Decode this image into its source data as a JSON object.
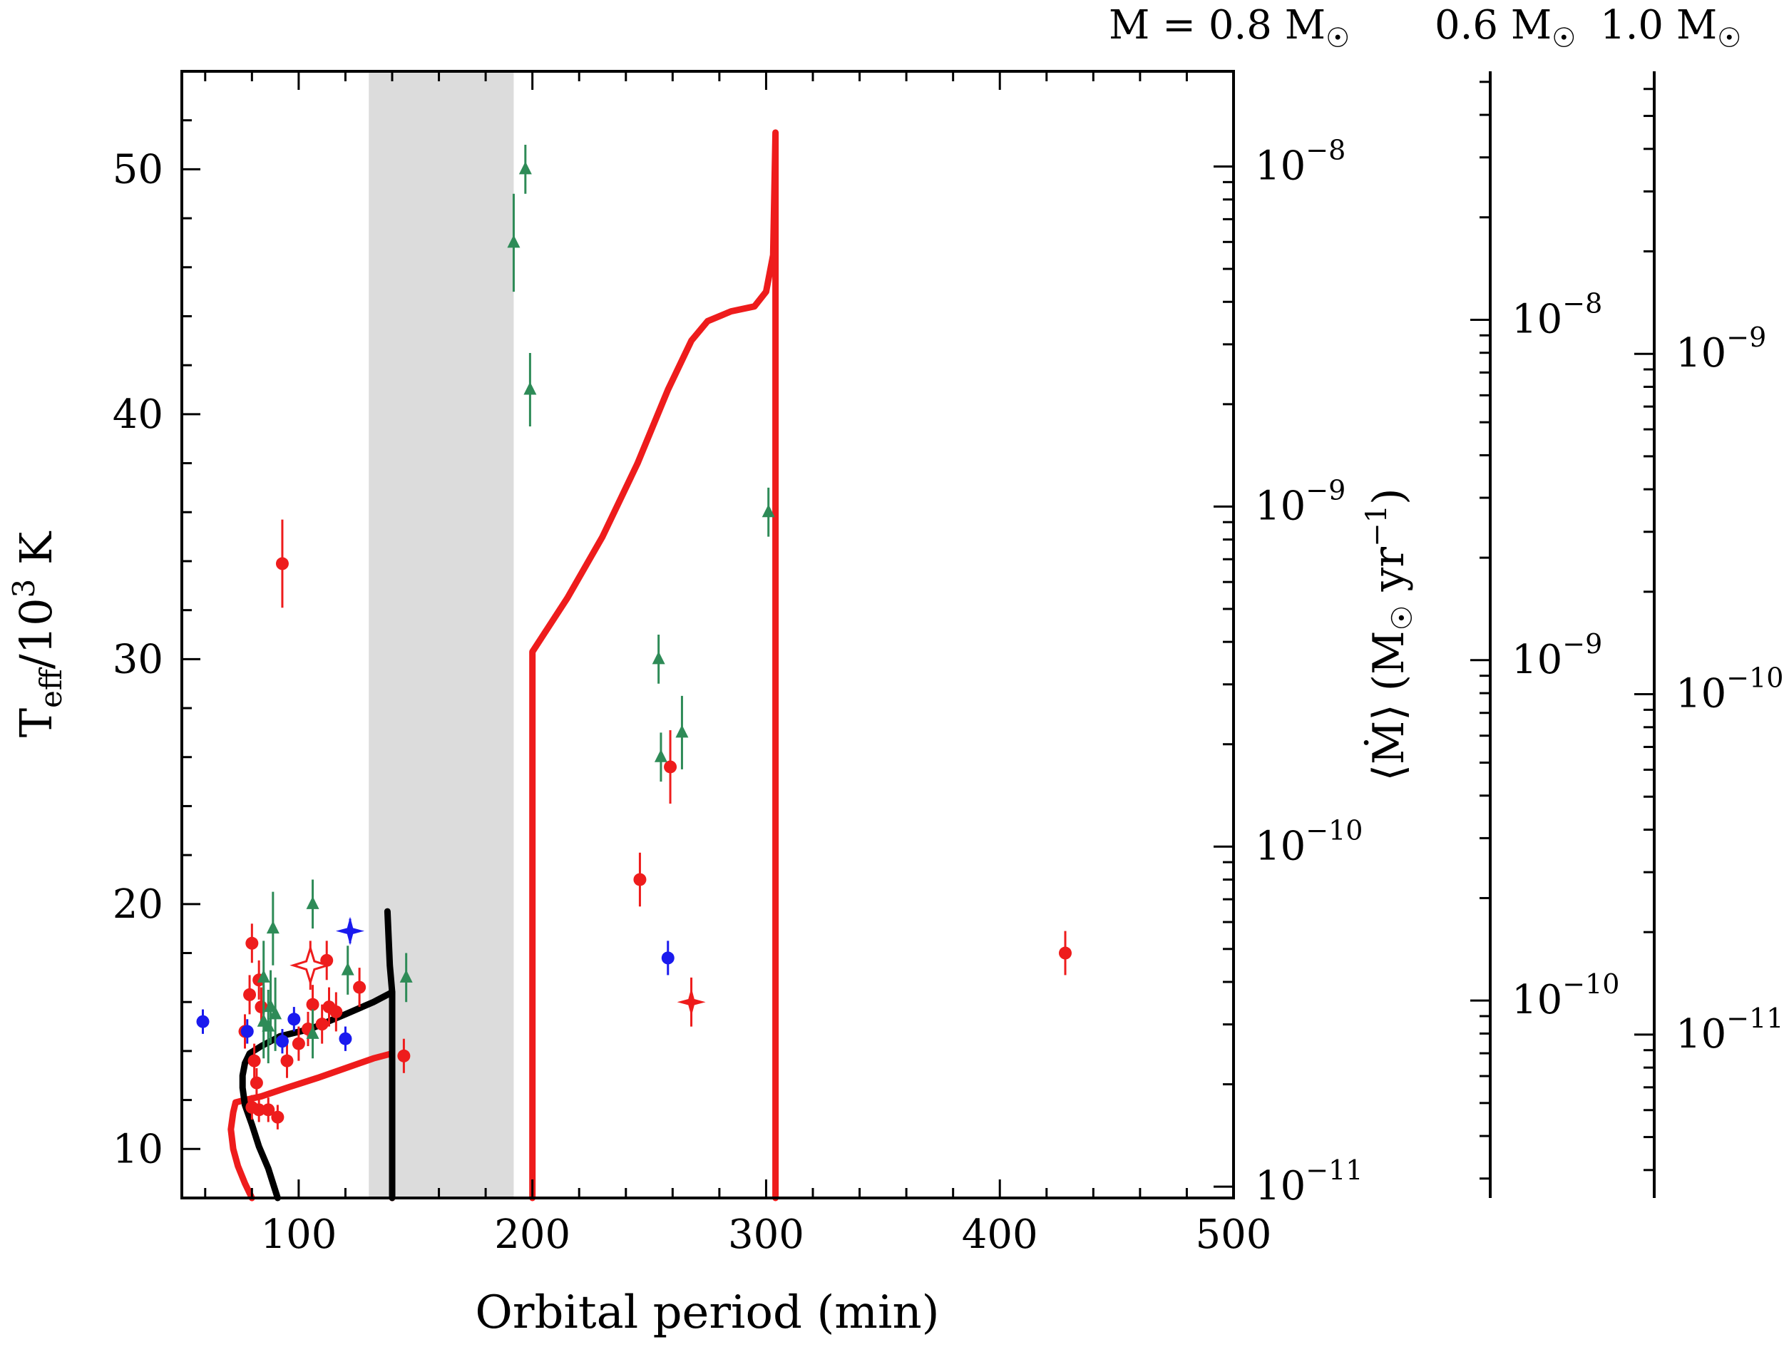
{
  "chart_data": {
    "type": "scatter",
    "xlabel": "Orbital period (min)",
    "ylabel": "T",
    "ylabel_sub": "eff",
    "ylabel_rest": "/10",
    "ylabel_sup": "3",
    "ylabel_unit": " K",
    "xlim": [
      50,
      500
    ],
    "ylim": [
      8,
      54
    ],
    "x_ticks": [
      100,
      200,
      300,
      400,
      500
    ],
    "y_ticks": [
      10,
      20,
      30,
      40,
      50
    ],
    "gap_band": {
      "x_range": [
        130,
        192
      ],
      "color": "#dcdcdc"
    },
    "right_axes": [
      {
        "label": "M = 0.8 M",
        "symbol": "☉",
        "log_range": [
          -11.0333,
          -7.72
        ],
        "decades": [
          -8,
          -9,
          -10,
          -11
        ]
      },
      {
        "label": "0.6 M",
        "symbol": "☉",
        "log_range": [
          -10.58,
          -7.27
        ],
        "decades": [
          -8,
          -9,
          -10
        ]
      },
      {
        "label": "1.0 M",
        "symbol": "☉",
        "log_range": [
          -11.48,
          -8.17
        ],
        "decades": [
          -9,
          -10,
          -11
        ]
      }
    ],
    "mdot_label": {
      "open": "⟨",
      "mdot": "Ṁ",
      "close": "⟩",
      "unit_open": "(M",
      "sun": "☉",
      "unit_mid": " yr",
      "unit_sup": "−1",
      "unit_close": ")"
    },
    "colors": {
      "red": "#ee1c1c",
      "green": "#2e8b57",
      "blue": "#1a1aee",
      "black": "#000000"
    },
    "series": [
      {
        "name": "red-circles",
        "color": "#ee1c1c",
        "marker": "circle",
        "points": [
          [
            93,
            33.9,
            1.8
          ],
          [
            80,
            18.4,
            0.8
          ],
          [
            83,
            16.9,
            0.8
          ],
          [
            79,
            16.3,
            0.8
          ],
          [
            84,
            15.8,
            0.8
          ],
          [
            77,
            14.8,
            0.7
          ],
          [
            81,
            13.6,
            0.7
          ],
          [
            82,
            12.7,
            0.6
          ],
          [
            80,
            11.7,
            0.5
          ],
          [
            83,
            11.6,
            0.5
          ],
          [
            87,
            11.6,
            0.5
          ],
          [
            91,
            11.3,
            0.5
          ],
          [
            95,
            13.6,
            0.7
          ],
          [
            100,
            14.3,
            0.7
          ],
          [
            104,
            14.9,
            0.7
          ],
          [
            106,
            15.9,
            0.8
          ],
          [
            110,
            15.1,
            0.8
          ],
          [
            112,
            17.7,
            0.8
          ],
          [
            113,
            15.8,
            0.8
          ],
          [
            116,
            15.6,
            0.8
          ],
          [
            126,
            16.6,
            0.8
          ],
          [
            145,
            13.8,
            0.7
          ],
          [
            246,
            21.0,
            1.1
          ],
          [
            259,
            25.6,
            1.5
          ],
          [
            428,
            18.0,
            0.9
          ]
        ]
      },
      {
        "name": "red-filled-stars",
        "color": "#ee1c1c",
        "marker": "star",
        "points": [
          [
            268,
            16.0,
            1.0
          ]
        ]
      },
      {
        "name": "red-open-star",
        "color": "#ee1c1c",
        "marker": "open-star",
        "points": [
          [
            105,
            17.5,
            1.0
          ]
        ]
      },
      {
        "name": "green-triangles",
        "color": "#2e8b57",
        "marker": "triangle",
        "points": [
          [
            89,
            19.0,
            1.5
          ],
          [
            106,
            20.0,
            1.0
          ],
          [
            85,
            17.0,
            1.5
          ],
          [
            88,
            15.8,
            1.5
          ],
          [
            90,
            15.5,
            1.5
          ],
          [
            87,
            15.0,
            1.5
          ],
          [
            85,
            15.2,
            1.5
          ],
          [
            106,
            14.7,
            1.0
          ],
          [
            121,
            17.3,
            1.0
          ],
          [
            146,
            17.0,
            1.0
          ],
          [
            192,
            47.0,
            2.0
          ],
          [
            197,
            50.0,
            1.0
          ],
          [
            199,
            41.0,
            1.5
          ],
          [
            254,
            30.0,
            1.0
          ],
          [
            255,
            26.0,
            1.0
          ],
          [
            264,
            27.0,
            1.5
          ],
          [
            301,
            36.0,
            1.0
          ]
        ]
      },
      {
        "name": "blue-circles",
        "color": "#1a1aee",
        "marker": "circle",
        "points": [
          [
            59,
            15.2,
            0.5
          ],
          [
            78,
            14.8,
            0.5
          ],
          [
            93,
            14.4,
            0.5
          ],
          [
            98,
            15.3,
            0.5
          ],
          [
            120,
            14.5,
            0.5
          ],
          [
            258,
            17.8,
            0.7
          ]
        ]
      },
      {
        "name": "blue-stars",
        "color": "#1a1aee",
        "marker": "star",
        "points": [
          [
            122,
            18.9,
            0.5
          ]
        ]
      }
    ],
    "tracks": [
      {
        "name": "red-track-long",
        "color": "#ee1c1c",
        "points": [
          [
            200,
            8
          ],
          [
            200,
            30.3
          ],
          [
            215,
            32.5
          ],
          [
            230,
            35.0
          ],
          [
            245,
            38.0
          ],
          [
            258,
            41.0
          ],
          [
            268,
            43.0
          ],
          [
            275,
            43.8
          ],
          [
            285,
            44.2
          ],
          [
            295,
            44.4
          ],
          [
            300,
            45.0
          ],
          [
            303,
            46.5
          ],
          [
            304,
            51.5
          ],
          [
            304,
            8
          ]
        ]
      },
      {
        "name": "red-track-short",
        "color": "#ee1c1c",
        "points": [
          [
            140,
            8
          ],
          [
            140,
            13.9
          ],
          [
            132,
            13.7
          ],
          [
            120,
            13.3
          ],
          [
            108,
            12.9
          ],
          [
            95,
            12.5
          ],
          [
            84,
            12.15
          ],
          [
            77,
            12.0
          ],
          [
            73,
            11.9
          ],
          [
            72,
            11.5
          ],
          [
            71,
            10.8
          ],
          [
            72,
            10.0
          ],
          [
            74,
            9.3
          ],
          [
            77,
            8.6
          ],
          [
            80,
            8.0
          ]
        ]
      },
      {
        "name": "black-track",
        "color": "#000000",
        "points": [
          [
            140,
            8
          ],
          [
            140,
            16.4
          ],
          [
            132,
            16.0
          ],
          [
            120,
            15.5
          ],
          [
            105,
            14.9
          ],
          [
            92,
            14.6
          ],
          [
            84,
            14.2
          ],
          [
            79,
            13.9
          ],
          [
            77,
            13.5
          ],
          [
            76,
            13.0
          ],
          [
            76,
            12.5
          ],
          [
            77,
            11.8
          ],
          [
            80,
            11.0
          ],
          [
            83,
            10.1
          ],
          [
            87,
            9.2
          ],
          [
            91,
            8.0
          ]
        ]
      },
      {
        "name": "black-track-top",
        "color": "#000000",
        "points": [
          [
            140,
            16.4
          ],
          [
            139,
            17.5
          ],
          [
            138,
            19.7
          ]
        ]
      }
    ]
  }
}
